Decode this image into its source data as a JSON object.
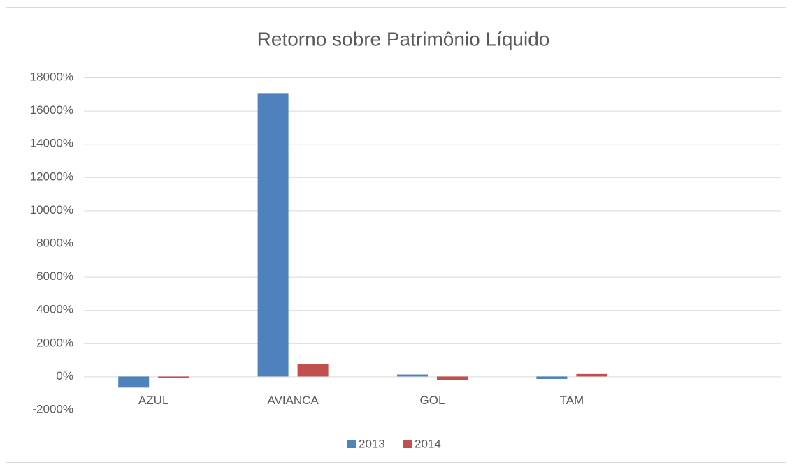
{
  "chart_data": {
    "type": "bar",
    "title": "Retorno sobre Patrimônio Líquido",
    "categories": [
      "AZUL",
      "AVIANCA",
      "GOL",
      "TAM",
      null
    ],
    "series": [
      {
        "name": "2013",
        "color": "#4f81bd",
        "values": [
          -670,
          17060,
          120,
          -150,
          null
        ]
      },
      {
        "name": "2014",
        "color": "#c0504d",
        "values": [
          -80,
          760,
          -200,
          150,
          null
        ]
      }
    ],
    "ylim": [
      -2000,
      18000
    ],
    "yticks": [
      {
        "value": -2000,
        "label": "-2000%"
      },
      {
        "value": 0,
        "label": "0%"
      },
      {
        "value": 2000,
        "label": "2000%"
      },
      {
        "value": 4000,
        "label": "4000%"
      },
      {
        "value": 6000,
        "label": "6000%"
      },
      {
        "value": 8000,
        "label": "8000%"
      },
      {
        "value": 10000,
        "label": "10000%"
      },
      {
        "value": 12000,
        "label": "12000%"
      },
      {
        "value": 14000,
        "label": "14000%"
      },
      {
        "value": 16000,
        "label": "16000%"
      },
      {
        "value": 18000,
        "label": "18000%"
      }
    ],
    "grid": true,
    "legend": "bottom"
  }
}
